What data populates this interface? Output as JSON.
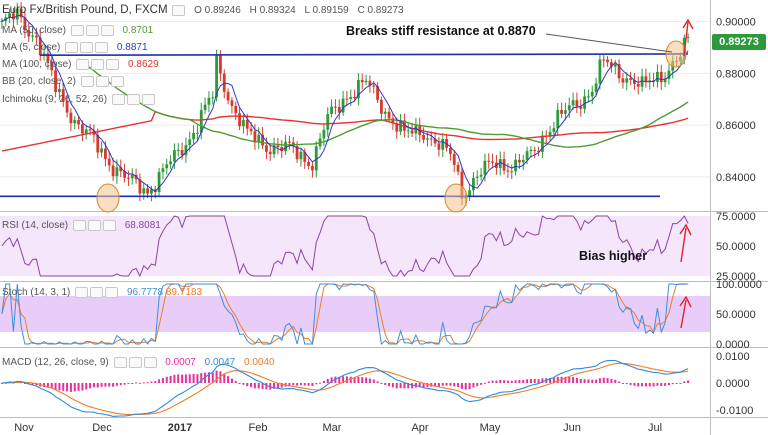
{
  "chart_data": {
    "type": "candlestick",
    "symbol": "Euro Fx/British Pound, D, FXCM",
    "ohlc": {
      "open": "0.89246",
      "high": "0.89324",
      "low": "0.89159",
      "close": "0.89273"
    },
    "last_price": "0.89273",
    "ylim": [
      0.828,
      0.906
    ],
    "price_ticks": [
      "0.90000",
      "0.88000",
      "0.86000",
      "0.84000"
    ],
    "x_labels": [
      "Nov",
      "Dec",
      "2017",
      "Feb",
      "Mar",
      "Apr",
      "May",
      "Jun",
      "Jul"
    ],
    "indicators": [
      {
        "name": "MA (50, close)",
        "value": "0.8701",
        "color": "#4f9b34"
      },
      {
        "name": "MA (5, close)",
        "value": "0.8871",
        "color": "#2f37c8"
      },
      {
        "name": "MA (100, close)",
        "value": "0.8629",
        "color": "#e8322e"
      },
      {
        "name": "BB (20, close, 2)",
        "value": "",
        "color": "#999999"
      },
      {
        "name": "Ichimoku (9, 26, 52, 26)",
        "value": "",
        "color": "#999999"
      }
    ],
    "support_level": 0.8325,
    "resistance_from": 0.887,
    "resistance_to": 0.8875,
    "annotations": {
      "resistance": "Breaks stiff resistance at 0.8870",
      "bias": "Bias higher"
    },
    "rsi": {
      "label": "RSI (14, close)",
      "value": "68.8081",
      "ticks": [
        "75.0000",
        "50.0000",
        "25.0000"
      ],
      "color": "#8b44a8"
    },
    "stoch": {
      "label": "Stoch (14, 3, 1)",
      "k": "96.7778",
      "d": "89.7183",
      "ticks": [
        "100.0000",
        "50.0000",
        "0.0000"
      ],
      "k_color": "#3d8fe0",
      "d_color": "#f07c28"
    },
    "macd": {
      "label": "MACD (12, 26, close, 9)",
      "hist": "0.0007",
      "macd": "0.0047",
      "signal": "0.0040",
      "ticks": [
        "0.0100",
        "0.0000",
        "-0.0100"
      ],
      "macd_color": "#2d8ce0",
      "signal_color": "#f07c28",
      "hist_color": "#e82f9a"
    },
    "colors": {
      "up": "#2c9a3a",
      "down": "#d63a2f",
      "line": "#1f2fb4",
      "circle": "#e8a83a",
      "arrow": "#e0242a"
    }
  }
}
